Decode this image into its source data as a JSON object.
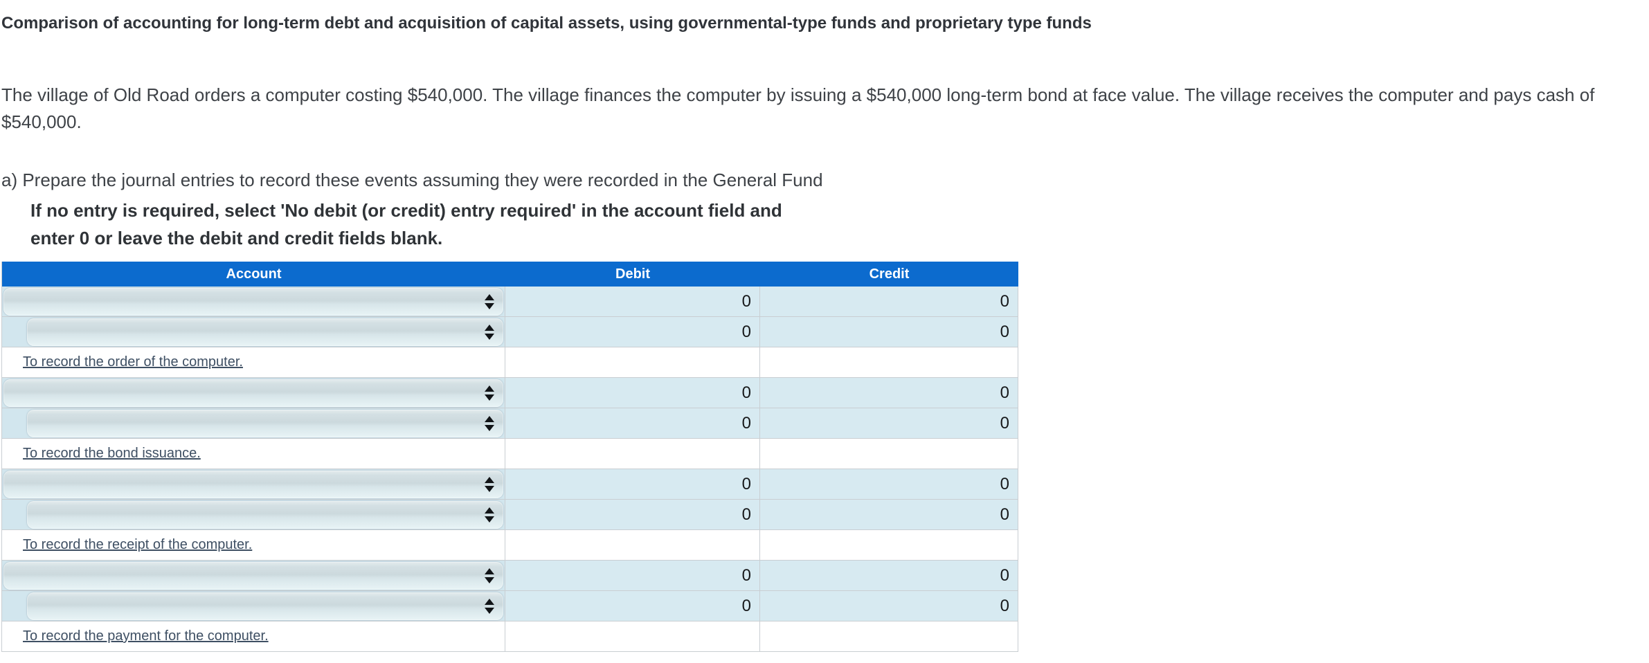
{
  "page": {
    "title": "Comparison of accounting for long-term debt and acquisition of capital assets, using governmental-type funds and proprietary type funds",
    "description": "The village of Old Road orders a computer costing $540,000. The village finances the computer by issuing a $540,000 long-term bond at face value. The village receives the computer and pays cash of $540,000.",
    "part_a_label": "a) Prepare the journal entries to record these events assuming they were recorded in the General Fund",
    "note_line1": "If no entry is required, select 'No debit (or credit) entry required' in the account field and",
    "note_line2": "enter 0 or leave the debit and credit fields blank."
  },
  "colors": {
    "header_bg": "#0c6bce",
    "amount_cell_bg": "#d7eaf1",
    "account_cell_bg": "#d2e6ee",
    "gridline": "#c9ced2",
    "memo_text": "#3e4f63",
    "header_text": "#ffffff"
  },
  "table": {
    "headers": {
      "account": "Account",
      "debit": "Debit",
      "credit": "Credit"
    },
    "rows": [
      {
        "type": "entry",
        "indent": false,
        "account_selected": "",
        "debit": "0",
        "credit": "0"
      },
      {
        "type": "entry",
        "indent": true,
        "account_selected": "",
        "debit": "0",
        "credit": "0"
      },
      {
        "type": "memo",
        "label": "To record the order of the computer."
      },
      {
        "type": "entry",
        "indent": false,
        "account_selected": "",
        "debit": "0",
        "credit": "0"
      },
      {
        "type": "entry",
        "indent": true,
        "account_selected": "",
        "debit": "0",
        "credit": "0"
      },
      {
        "type": "memo",
        "label": "To record the bond issuance."
      },
      {
        "type": "entry",
        "indent": false,
        "account_selected": "",
        "debit": "0",
        "credit": "0"
      },
      {
        "type": "entry",
        "indent": true,
        "account_selected": "",
        "debit": "0",
        "credit": "0"
      },
      {
        "type": "memo",
        "label": "To record the receipt of the computer."
      },
      {
        "type": "entry",
        "indent": false,
        "account_selected": "",
        "debit": "0",
        "credit": "0"
      },
      {
        "type": "entry",
        "indent": true,
        "account_selected": "",
        "debit": "0",
        "credit": "0"
      },
      {
        "type": "memo",
        "label": "To record the payment for the computer."
      }
    ]
  }
}
